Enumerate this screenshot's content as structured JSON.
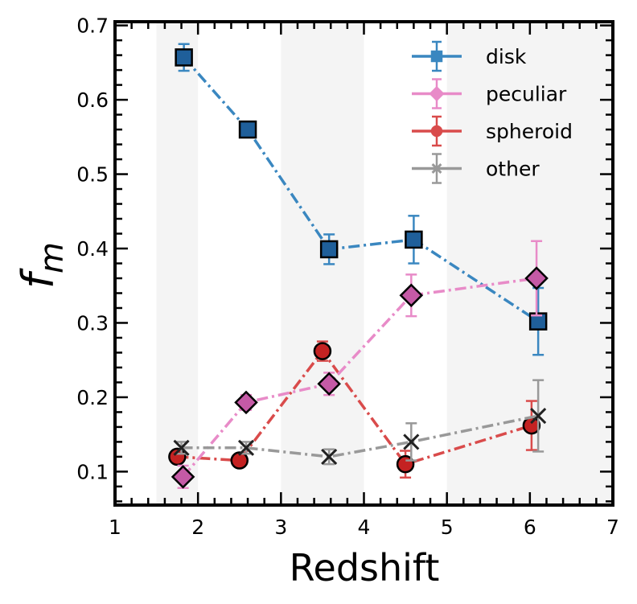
{
  "chart_data": {
    "type": "line",
    "title": "",
    "xlabel": "Redshift",
    "ylabel_base": "f",
    "ylabel_sub": "m",
    "xlim": [
      1,
      7
    ],
    "ylim": [
      0.055,
      0.705
    ],
    "x_ticks": [
      1,
      2,
      3,
      4,
      5,
      6,
      7
    ],
    "y_ticks": [
      0.1,
      0.2,
      0.3,
      0.4,
      0.5,
      0.6,
      0.7
    ],
    "x_tick_labels": [
      "1",
      "2",
      "3",
      "4",
      "5",
      "6",
      "7"
    ],
    "y_tick_labels": [
      "0.1",
      "0.2",
      "0.3",
      "0.4",
      "0.5",
      "0.6",
      "0.7"
    ],
    "shaded_bins": [
      [
        1.5,
        2.0
      ],
      [
        3.0,
        4.0
      ],
      [
        5.0,
        7.0
      ]
    ],
    "legend_position": "top-right",
    "series": [
      {
        "name": "disk",
        "marker": "square",
        "color": "#3a87c0",
        "marker_fill": "#1f5f9a",
        "x": [
          1.83,
          2.6,
          3.58,
          4.6,
          6.1
        ],
        "y": [
          0.657,
          0.56,
          0.399,
          0.412,
          0.302
        ],
        "yerr": [
          0.018,
          0.01,
          0.02,
          0.032,
          0.045
        ]
      },
      {
        "name": "peculiar",
        "marker": "diamond",
        "color": "#e88bc8",
        "marker_fill": "#c55aa6",
        "x": [
          1.82,
          2.58,
          3.58,
          4.57,
          6.08
        ],
        "y": [
          0.093,
          0.193,
          0.218,
          0.337,
          0.36
        ],
        "yerr": [
          0.015,
          0.01,
          0.015,
          0.028,
          0.05
        ]
      },
      {
        "name": "spheroid",
        "marker": "circle",
        "color": "#d94b4b",
        "marker_fill": "#c42222",
        "x": [
          1.75,
          2.5,
          3.5,
          4.5,
          6.02
        ],
        "y": [
          0.12,
          0.115,
          0.262,
          0.11,
          0.162
        ],
        "yerr": [
          0.008,
          0.008,
          0.013,
          0.018,
          0.033
        ]
      },
      {
        "name": "other",
        "marker": "x",
        "color": "#999999",
        "marker_fill": "#555555",
        "x": [
          1.8,
          2.58,
          3.58,
          4.57,
          6.1
        ],
        "y": [
          0.132,
          0.132,
          0.12,
          0.14,
          0.175
        ],
        "yerr": [
          0.008,
          0.008,
          0.01,
          0.025,
          0.048
        ]
      }
    ]
  }
}
